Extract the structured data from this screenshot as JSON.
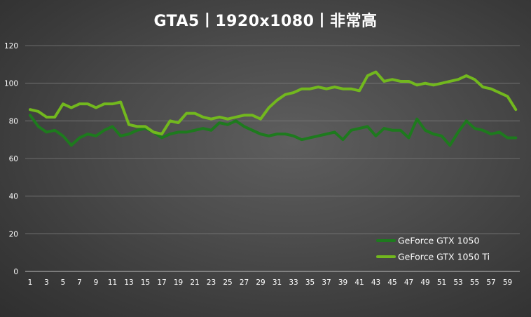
{
  "chart_data": {
    "type": "line",
    "title": "GTA5丨1920x1080丨非常高",
    "xlabel": "",
    "ylabel": "",
    "ylim": [
      0,
      120
    ],
    "yticks": [
      0,
      20,
      40,
      60,
      80,
      100,
      120
    ],
    "xticks": [
      1,
      3,
      5,
      7,
      9,
      11,
      13,
      15,
      17,
      19,
      21,
      23,
      25,
      27,
      29,
      31,
      33,
      35,
      37,
      39,
      41,
      43,
      45,
      47,
      49,
      51,
      53,
      55,
      57,
      59
    ],
    "x": [
      1,
      2,
      3,
      4,
      5,
      6,
      7,
      8,
      9,
      10,
      11,
      12,
      13,
      14,
      15,
      16,
      17,
      18,
      19,
      20,
      21,
      22,
      23,
      24,
      25,
      26,
      27,
      28,
      29,
      30,
      31,
      32,
      33,
      34,
      35,
      36,
      37,
      38,
      39,
      40,
      41,
      42,
      43,
      44,
      45,
      46,
      47,
      48,
      49,
      50,
      51,
      52,
      53,
      54,
      55,
      56,
      57,
      58,
      59,
      60
    ],
    "grid": "horizontal",
    "legend_position": "bottom-right",
    "series": [
      {
        "name": "GeForce GTX 1050",
        "color": "#1e7a1e",
        "values": [
          83,
          77,
          74,
          75,
          72,
          67,
          71,
          73,
          72,
          75,
          77,
          72,
          73,
          75,
          76,
          74,
          71,
          73,
          74,
          74,
          75,
          76,
          75,
          79,
          78,
          80,
          77,
          75,
          73,
          72,
          73,
          73,
          72,
          70,
          71,
          72,
          73,
          74,
          70,
          75,
          76,
          77,
          72,
          76,
          75,
          75,
          71,
          81,
          75,
          73,
          72,
          67,
          74,
          80,
          76,
          75,
          73,
          74,
          71,
          71
        ]
      },
      {
        "name": "GeForce GTX 1050 Ti",
        "color": "#72b81e",
        "values": [
          86,
          85,
          82,
          82,
          89,
          87,
          89,
          89,
          87,
          89,
          89,
          90,
          78,
          77,
          77,
          74,
          73,
          80,
          79,
          84,
          84,
          82,
          81,
          82,
          81,
          82,
          83,
          83,
          81,
          87,
          91,
          94,
          95,
          97,
          97,
          98,
          97,
          98,
          97,
          97,
          96,
          104,
          106,
          101,
          102,
          101,
          101,
          99,
          100,
          99,
          100,
          101,
          102,
          104,
          102,
          98,
          97,
          95,
          93,
          86
        ]
      }
    ]
  }
}
